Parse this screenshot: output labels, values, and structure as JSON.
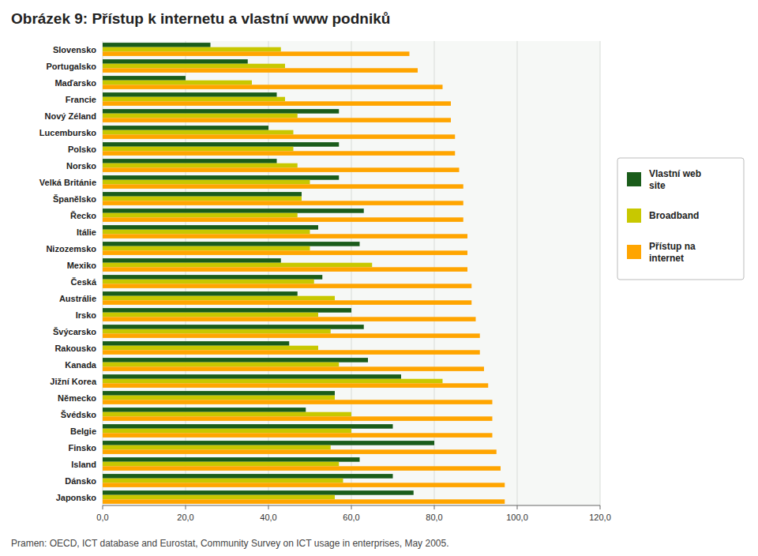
{
  "chart_data": {
    "type": "bar",
    "orientation": "horizontal",
    "title": "Obrázek 9: Přístup k internetu a vlastní www podniků",
    "subtitle": "Pramen: OECD, ICT database and Eurostat, Community Survey on ICT usage in enterprises, May 2005.",
    "categories": [
      "Slovensko",
      "Portugalsko",
      "Maďarsko",
      "Francie",
      "Nový Zéland",
      "Lucembursko",
      "Polsko",
      "Norsko",
      "Velká Británie",
      "Španělsko",
      "Řecko",
      "Itálie",
      "Nizozemsko",
      "Mexiko",
      "Česká",
      "Austrálie",
      "Irsko",
      "Švýcarsko",
      "Rakousko",
      "Kanada",
      "Jižní Korea",
      "Německo",
      "Švédsko",
      "Belgie",
      "Finsko",
      "Island",
      "Dánsko",
      "Japonsko"
    ],
    "series": [
      {
        "name": "Vlastní web\nsite",
        "color": "#1a5c1a",
        "values": [
          26,
          35,
          20,
          42,
          57,
          40,
          57,
          42,
          57,
          48,
          63,
          52,
          62,
          43,
          53,
          47,
          60,
          63,
          45,
          64,
          72,
          56,
          49,
          70,
          80,
          62,
          70,
          75
        ]
      },
      {
        "name": "Broadband",
        "color": "#c8c800",
        "values": [
          43,
          44,
          36,
          44,
          47,
          46,
          46,
          47,
          50,
          48,
          47,
          50,
          50,
          65,
          51,
          56,
          52,
          55,
          52,
          57,
          82,
          56,
          60,
          60,
          55,
          57,
          58,
          56
        ]
      },
      {
        "name": "Přístup na\ninternet",
        "color": "#ffa500",
        "values": [
          74,
          76,
          82,
          84,
          84,
          85,
          85,
          86,
          87,
          87,
          87,
          88,
          88,
          88,
          89,
          89,
          90,
          91,
          91,
          92,
          93,
          94,
          94,
          94,
          95,
          96,
          97,
          97
        ]
      }
    ],
    "xlim": [
      0,
      120
    ],
    "xticks": [
      {
        "value": 0,
        "label": "0,0"
      },
      {
        "value": 20,
        "label": "20,0"
      },
      {
        "value": 40,
        "label": "40,0"
      },
      {
        "value": 60,
        "label": "60,0"
      },
      {
        "value": 80,
        "label": "80,0"
      },
      {
        "value": 100,
        "label": "100,0"
      },
      {
        "value": 120,
        "label": "120,0"
      }
    ],
    "grid": true,
    "legend": "right"
  }
}
